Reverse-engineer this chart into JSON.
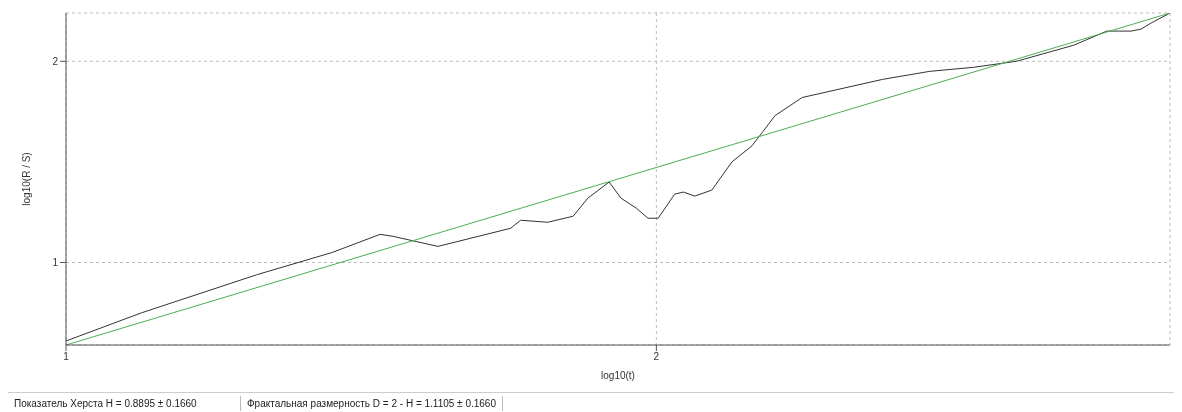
{
  "chart_data": {
    "type": "line",
    "xlabel": "log10(t)",
    "ylabel": "log10(R / S)",
    "xlim": [
      1,
      2.87
    ],
    "ylim": [
      0.59,
      2.24
    ],
    "xticks": [
      1,
      2
    ],
    "yticks": [
      1,
      2
    ],
    "grid": true,
    "marker": "none",
    "line_style": "solid",
    "series": [
      {
        "color": "#333333",
        "x": [
          1,
          1.128,
          1.324,
          1.451,
          1.532,
          1.554,
          1.63,
          1.753,
          1.77,
          1.816,
          1.859,
          1.884,
          1.92,
          1.94,
          1.966,
          1.986,
          2.003,
          2.031,
          2.046,
          2.065,
          2.094,
          2.128,
          2.162,
          2.201,
          2.247,
          2.383,
          2.463,
          2.537,
          2.61,
          2.707,
          2.763,
          2.785,
          2.804,
          2.821,
          2.838,
          2.87
        ],
        "values": [
          0.61,
          0.75,
          0.94,
          1.05,
          1.14,
          1.13,
          1.08,
          1.17,
          1.21,
          1.2,
          1.23,
          1.32,
          1.4,
          1.32,
          1.27,
          1.22,
          1.22,
          1.34,
          1.35,
          1.33,
          1.36,
          1.5,
          1.58,
          1.73,
          1.82,
          1.91,
          1.95,
          1.97,
          2.0,
          2.08,
          2.15,
          2.15,
          2.15,
          2.16,
          2.19,
          2.24
        ]
      },
      {
        "color": "#4caf50",
        "x": [
          1,
          2.87
        ],
        "values": [
          0.59,
          2.24
        ]
      }
    ],
    "annotations": [
      "Показатель Херста H = 0.8895 ± 0.1660",
      "Фрактальная размерность D = 2 - H = 1.1105 ± 0.1660"
    ]
  }
}
